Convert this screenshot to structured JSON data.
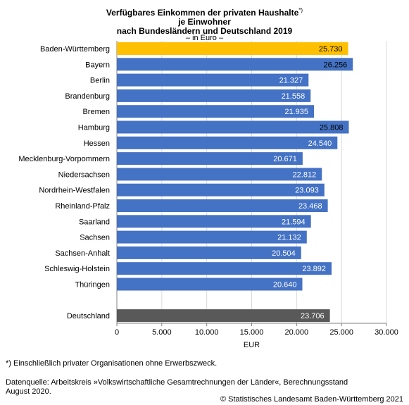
{
  "chart_data": {
    "type": "bar",
    "orientation": "horizontal",
    "title_lines": [
      "Verfügbares Einkommen der privaten Haushalte",
      "je Einwohner",
      "nach Bundesländern und Deutschland 2019"
    ],
    "title_marker": "*)",
    "subtitle": "– in Euro –",
    "categories": [
      "Baden-Württemberg",
      "Bayern",
      "Berlin",
      "Brandenburg",
      "Bremen",
      "Hamburg",
      "Hessen",
      "Mecklenburg-Vorpommern",
      "Niedersachsen",
      "Nordrhein-Westfalen",
      "Rheinland-Pfalz",
      "Saarland",
      "Sachsen",
      "Sachsen-Anhalt",
      "Schleswig-Holstein",
      "Thüringen",
      "",
      "Deutschland"
    ],
    "values": [
      25730,
      26256,
      21327,
      21558,
      21935,
      25808,
      24540,
      20671,
      22812,
      23093,
      23468,
      21594,
      21132,
      20504,
      23892,
      20640,
      null,
      23706
    ],
    "value_labels": [
      "25.730",
      "26.256",
      "21.327",
      "21.558",
      "21.935",
      "25.808",
      "24.540",
      "20.671",
      "22.812",
      "23.093",
      "23.468",
      "21.594",
      "21.132",
      "20.504",
      "23.892",
      "20.640",
      "",
      "23.706"
    ],
    "bar_colors": [
      "#FFC000",
      "#4472C4",
      "#4472C4",
      "#4472C4",
      "#4472C4",
      "#4472C4",
      "#4472C4",
      "#4472C4",
      "#4472C4",
      "#4472C4",
      "#4472C4",
      "#4472C4",
      "#4472C4",
      "#4472C4",
      "#4472C4",
      "#4472C4",
      "#4472C4",
      "#595959"
    ],
    "label_colors": [
      "#000000",
      "#000000",
      "#ffffff",
      "#ffffff",
      "#ffffff",
      "#000000",
      "#ffffff",
      "#ffffff",
      "#ffffff",
      "#ffffff",
      "#ffffff",
      "#ffffff",
      "#ffffff",
      "#ffffff",
      "#ffffff",
      "#ffffff",
      "#ffffff",
      "#ffffff"
    ],
    "x_ticks": [
      0,
      5000,
      10000,
      15000,
      20000,
      25000,
      30000
    ],
    "x_tick_labels": [
      "0",
      "5.000",
      "10.000",
      "15.000",
      "20.000",
      "25.000",
      "30.000"
    ],
    "xlim": [
      0,
      30000
    ],
    "xlabel": "EUR",
    "grid": "vertical",
    "grid_color": "#d9d9d9"
  },
  "footnote": "*) Einschließlich privater Organisationen ohne Erwerbszweck.",
  "source_line1": "Datenquelle: Arbeitskreis »Volkswirtschaftliche Gesamtrechnungen der Länder«, Berechnungsstand",
  "source_line2": "August 2020.",
  "copyright": "© Statistisches Landesamt Baden-Württemberg 2021"
}
